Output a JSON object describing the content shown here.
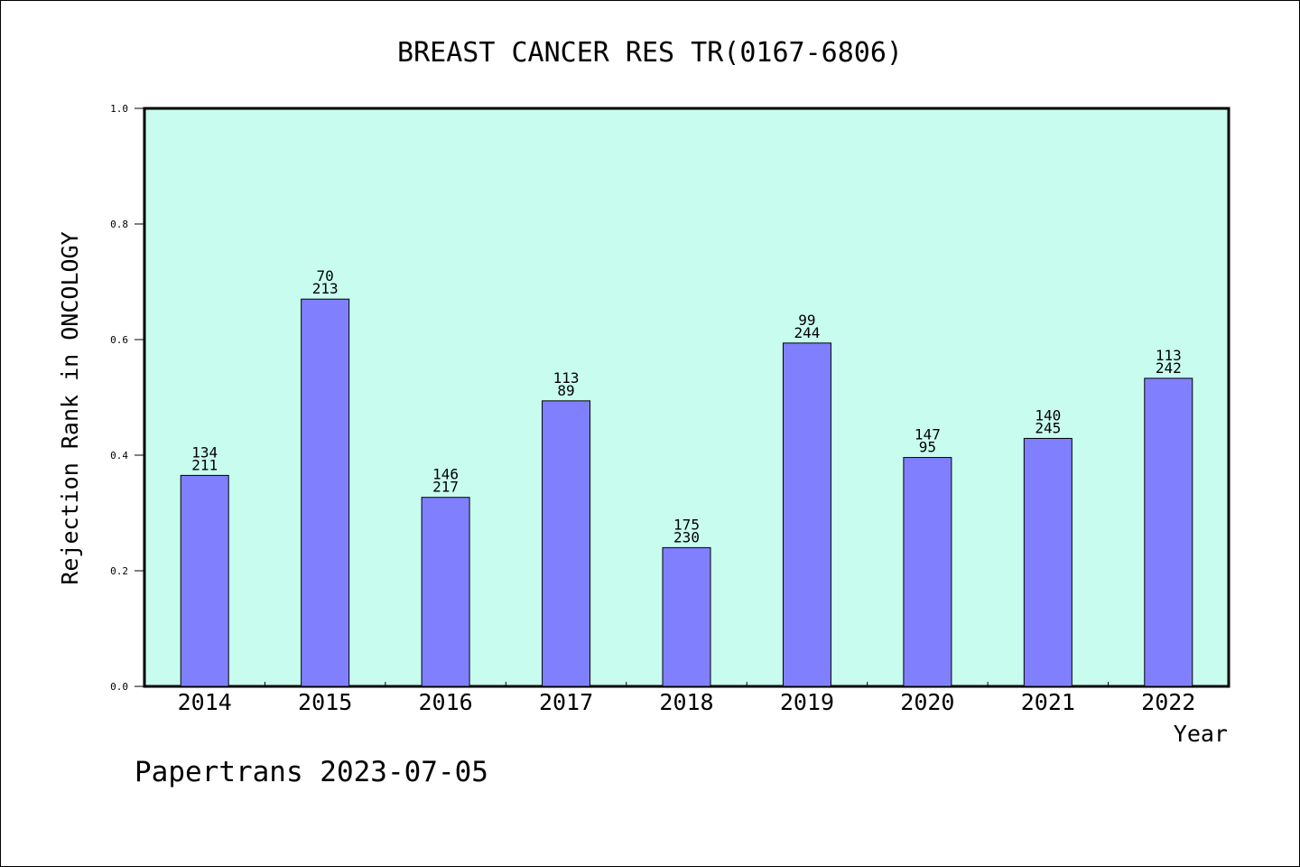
{
  "chart_data": {
    "type": "bar",
    "title": "BREAST CANCER RES TR(0167-6806)",
    "xlabel": "Year",
    "ylabel": "Rejection Rank in ONCOLOGY",
    "ylim": [
      0,
      1.0
    ],
    "yticks": [
      "0.0",
      "0.2",
      "0.4",
      "0.6",
      "0.8",
      "1.0"
    ],
    "grid": false,
    "legend": "none",
    "categories": [
      "2014",
      "2015",
      "2016",
      "2017",
      "2018",
      "2019",
      "2020",
      "2021",
      "2022"
    ],
    "values": [
      0.365,
      0.67,
      0.327,
      0.494,
      0.24,
      0.594,
      0.396,
      0.429,
      0.533
    ],
    "labels_top": [
      "134",
      "70",
      "146",
      "113",
      "175",
      "99",
      "147",
      "140",
      "113"
    ],
    "labels_bottom": [
      "211",
      "213",
      "217",
      "89",
      "230",
      "244",
      "95",
      "245",
      "242"
    ],
    "colors": {
      "plot_background": "#c8fcee",
      "bar_fill": "#8080ff",
      "bar_stroke": "#000000"
    }
  },
  "footer": {
    "text": "Papertrans 2023-07-05"
  }
}
